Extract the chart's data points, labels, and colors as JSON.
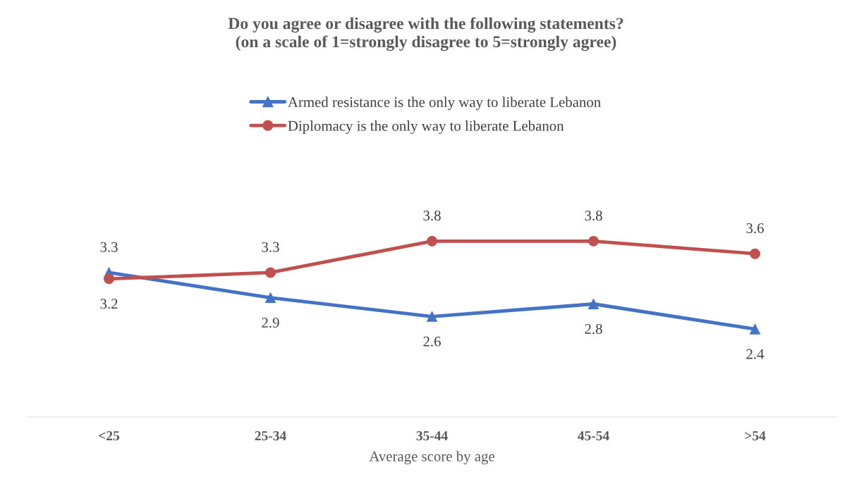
{
  "chart_data": {
    "type": "line",
    "title": "Do you agree or disagree with the following statements?\n(on a scale of 1=strongly disagree to 5=strongly agree)",
    "xlabel": "Average score by age",
    "categories": [
      "<25",
      "25-34",
      "35-44",
      "45-54",
      ">54"
    ],
    "series": [
      {
        "name": "Armed resistance is the only way to liberate Lebanon",
        "color": "#4472c4",
        "marker": "triangle",
        "values": [
          3.3,
          2.9,
          2.6,
          2.8,
          2.4
        ]
      },
      {
        "name": "Diplomacy is the only way to liberate Lebanon",
        "color": "#c0504d",
        "marker": "circle",
        "values": [
          3.2,
          3.3,
          3.8,
          3.8,
          3.6
        ]
      }
    ],
    "data_labels": true,
    "legend": "top",
    "grid": false,
    "line_style": "solid"
  }
}
